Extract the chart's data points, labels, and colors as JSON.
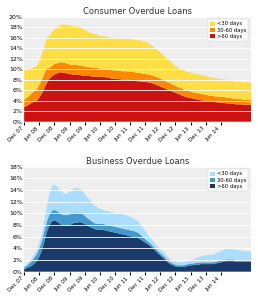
{
  "title1": "Consumer Overdue Loans",
  "title2": "Business Overdue Loans",
  "consumer_legend": [
    "<30 days",
    "30-60 days",
    ">60 days"
  ],
  "business_legend": [
    "<30 days",
    "30-60 days",
    ">60 days"
  ],
  "consumer_colors": [
    "#FFDD44",
    "#FF8800",
    "#CC1111"
  ],
  "business_colors": [
    "#AADDFF",
    "#4499CC",
    "#1A3A6B"
  ],
  "ylim1": [
    0,
    0.2
  ],
  "ylim2": [
    0,
    0.18
  ],
  "yticks1": [
    0.0,
    0.02,
    0.04,
    0.06,
    0.08,
    0.1,
    0.12,
    0.14,
    0.16,
    0.18,
    0.2
  ],
  "yticks2": [
    0.0,
    0.02,
    0.04,
    0.06,
    0.08,
    0.1,
    0.12,
    0.14,
    0.16,
    0.18
  ],
  "n_points": 91,
  "x_tick_labels": [
    "Dec 07",
    "Jun 08",
    "Dec 08",
    "Jun 09",
    "Dec 09",
    "Jun 10",
    "Dec 10",
    "Jun 11",
    "Dec 11",
    "Jun 12",
    "Dec 12",
    "Jun 13",
    "Dec 13",
    "Jun 14"
  ],
  "x_tick_positions": [
    0,
    6,
    12,
    18,
    24,
    30,
    36,
    42,
    48,
    54,
    60,
    66,
    72,
    78
  ],
  "consumer_gt60": [
    0.028,
    0.03,
    0.033,
    0.036,
    0.038,
    0.04,
    0.046,
    0.054,
    0.064,
    0.074,
    0.082,
    0.086,
    0.09,
    0.092,
    0.094,
    0.094,
    0.093,
    0.092,
    0.091,
    0.09,
    0.09,
    0.09,
    0.089,
    0.088,
    0.088,
    0.087,
    0.087,
    0.086,
    0.086,
    0.086,
    0.085,
    0.085,
    0.085,
    0.084,
    0.083,
    0.082,
    0.082,
    0.081,
    0.081,
    0.08,
    0.08,
    0.08,
    0.079,
    0.079,
    0.078,
    0.077,
    0.077,
    0.076,
    0.076,
    0.075,
    0.074,
    0.073,
    0.071,
    0.069,
    0.067,
    0.065,
    0.063,
    0.061,
    0.059,
    0.057,
    0.055,
    0.053,
    0.051,
    0.049,
    0.047,
    0.046,
    0.045,
    0.044,
    0.043,
    0.042,
    0.041,
    0.04,
    0.04,
    0.039,
    0.039,
    0.038,
    0.037,
    0.037,
    0.036,
    0.036,
    0.035,
    0.035,
    0.034,
    0.034,
    0.033,
    0.033,
    0.033,
    0.032,
    0.032,
    0.032,
    0.032
  ],
  "consumer_30_60": [
    0.014,
    0.015,
    0.016,
    0.018,
    0.02,
    0.022,
    0.024,
    0.026,
    0.028,
    0.028,
    0.02,
    0.02,
    0.02,
    0.019,
    0.019,
    0.019,
    0.019,
    0.019,
    0.018,
    0.018,
    0.018,
    0.018,
    0.018,
    0.018,
    0.017,
    0.017,
    0.017,
    0.017,
    0.017,
    0.017,
    0.016,
    0.016,
    0.016,
    0.016,
    0.016,
    0.016,
    0.016,
    0.016,
    0.016,
    0.016,
    0.016,
    0.016,
    0.016,
    0.016,
    0.016,
    0.016,
    0.016,
    0.015,
    0.015,
    0.015,
    0.015,
    0.015,
    0.015,
    0.015,
    0.015,
    0.015,
    0.014,
    0.014,
    0.014,
    0.013,
    0.013,
    0.013,
    0.013,
    0.013,
    0.013,
    0.013,
    0.012,
    0.012,
    0.012,
    0.012,
    0.012,
    0.012,
    0.012,
    0.011,
    0.011,
    0.011,
    0.011,
    0.011,
    0.011,
    0.011,
    0.011,
    0.011,
    0.011,
    0.01,
    0.01,
    0.01,
    0.01,
    0.01,
    0.01,
    0.01,
    0.01
  ],
  "consumer_lt30": [
    0.058,
    0.055,
    0.051,
    0.048,
    0.046,
    0.044,
    0.044,
    0.048,
    0.052,
    0.058,
    0.062,
    0.064,
    0.066,
    0.068,
    0.07,
    0.072,
    0.073,
    0.074,
    0.074,
    0.074,
    0.074,
    0.074,
    0.073,
    0.072,
    0.07,
    0.068,
    0.066,
    0.065,
    0.064,
    0.063,
    0.062,
    0.062,
    0.062,
    0.062,
    0.062,
    0.062,
    0.062,
    0.062,
    0.062,
    0.062,
    0.062,
    0.062,
    0.062,
    0.062,
    0.062,
    0.062,
    0.062,
    0.062,
    0.062,
    0.06,
    0.058,
    0.056,
    0.054,
    0.052,
    0.05,
    0.048,
    0.046,
    0.044,
    0.042,
    0.04,
    0.038,
    0.037,
    0.036,
    0.036,
    0.036,
    0.036,
    0.036,
    0.036,
    0.036,
    0.036,
    0.036,
    0.036,
    0.036,
    0.035,
    0.035,
    0.035,
    0.035,
    0.034,
    0.034,
    0.034,
    0.034,
    0.034,
    0.034,
    0.033,
    0.033,
    0.033,
    0.033,
    0.033,
    0.033,
    0.033,
    0.032
  ],
  "business_gt60": [
    0.004,
    0.006,
    0.008,
    0.01,
    0.014,
    0.018,
    0.026,
    0.036,
    0.052,
    0.068,
    0.08,
    0.086,
    0.088,
    0.086,
    0.083,
    0.08,
    0.079,
    0.079,
    0.08,
    0.082,
    0.084,
    0.084,
    0.085,
    0.084,
    0.082,
    0.079,
    0.077,
    0.075,
    0.073,
    0.072,
    0.072,
    0.072,
    0.071,
    0.07,
    0.069,
    0.068,
    0.067,
    0.066,
    0.065,
    0.064,
    0.063,
    0.062,
    0.061,
    0.06,
    0.059,
    0.058,
    0.056,
    0.053,
    0.05,
    0.047,
    0.044,
    0.04,
    0.036,
    0.032,
    0.028,
    0.024,
    0.02,
    0.016,
    0.013,
    0.011,
    0.009,
    0.008,
    0.008,
    0.008,
    0.009,
    0.01,
    0.011,
    0.011,
    0.012,
    0.012,
    0.013,
    0.013,
    0.013,
    0.013,
    0.013,
    0.013,
    0.014,
    0.015,
    0.016,
    0.017,
    0.018,
    0.018,
    0.018,
    0.018,
    0.017,
    0.017,
    0.017,
    0.017,
    0.017,
    0.017,
    0.017
  ],
  "business_30_60": [
    0.003,
    0.004,
    0.006,
    0.008,
    0.01,
    0.012,
    0.014,
    0.016,
    0.018,
    0.018,
    0.018,
    0.018,
    0.018,
    0.018,
    0.018,
    0.018,
    0.018,
    0.018,
    0.018,
    0.018,
    0.018,
    0.017,
    0.016,
    0.015,
    0.014,
    0.013,
    0.012,
    0.011,
    0.01,
    0.01,
    0.01,
    0.01,
    0.01,
    0.01,
    0.01,
    0.01,
    0.01,
    0.01,
    0.01,
    0.01,
    0.01,
    0.01,
    0.01,
    0.01,
    0.01,
    0.009,
    0.008,
    0.007,
    0.006,
    0.005,
    0.005,
    0.004,
    0.004,
    0.004,
    0.004,
    0.004,
    0.004,
    0.003,
    0.003,
    0.003,
    0.003,
    0.003,
    0.003,
    0.003,
    0.003,
    0.003,
    0.003,
    0.003,
    0.003,
    0.003,
    0.003,
    0.003,
    0.003,
    0.003,
    0.003,
    0.003,
    0.003,
    0.003,
    0.003,
    0.003,
    0.003,
    0.003,
    0.003,
    0.003,
    0.003,
    0.003,
    0.003,
    0.003,
    0.003,
    0.003,
    0.003
  ],
  "business_lt30": [
    0.002,
    0.003,
    0.004,
    0.005,
    0.006,
    0.007,
    0.009,
    0.012,
    0.018,
    0.026,
    0.036,
    0.042,
    0.044,
    0.042,
    0.04,
    0.038,
    0.037,
    0.037,
    0.038,
    0.04,
    0.042,
    0.042,
    0.042,
    0.04,
    0.038,
    0.036,
    0.034,
    0.032,
    0.03,
    0.028,
    0.026,
    0.025,
    0.024,
    0.024,
    0.024,
    0.024,
    0.024,
    0.024,
    0.024,
    0.024,
    0.024,
    0.024,
    0.023,
    0.022,
    0.021,
    0.02,
    0.018,
    0.016,
    0.014,
    0.012,
    0.01,
    0.009,
    0.008,
    0.007,
    0.007,
    0.007,
    0.007,
    0.006,
    0.006,
    0.005,
    0.005,
    0.005,
    0.005,
    0.005,
    0.005,
    0.005,
    0.006,
    0.007,
    0.008,
    0.009,
    0.01,
    0.011,
    0.012,
    0.013,
    0.013,
    0.013,
    0.014,
    0.015,
    0.016,
    0.017,
    0.018,
    0.018,
    0.018,
    0.018,
    0.017,
    0.017,
    0.016,
    0.016,
    0.015,
    0.015,
    0.014
  ]
}
